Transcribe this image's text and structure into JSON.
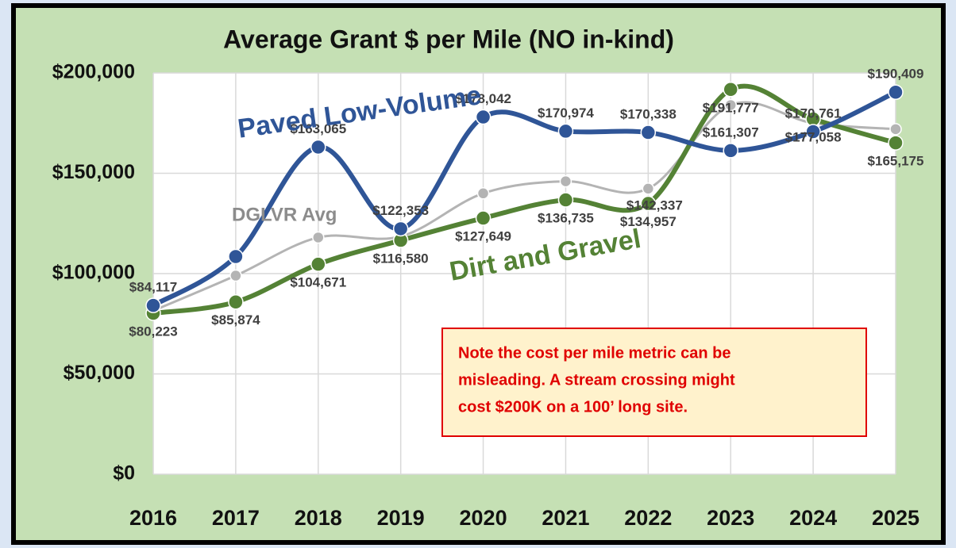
{
  "chart_data": {
    "type": "line",
    "title": "Average Grant $ per Mile (NO in-kind)",
    "categories": [
      "2016",
      "2017",
      "2018",
      "2019",
      "2020",
      "2021",
      "2022",
      "2023",
      "2024",
      "2025"
    ],
    "series": [
      {
        "name": "Paved Low-Volume",
        "color": "#2f5597",
        "values": [
          84117,
          108500,
          163065,
          122353,
          178042,
          170974,
          170338,
          161307,
          170761,
          190409
        ],
        "value_labels": [
          "$84,117",
          null,
          "$163,065",
          "$122,353",
          "$178,042",
          "$170,974",
          "$170,338",
          "$161,307",
          "$170,761",
          "$190,409"
        ]
      },
      {
        "name": "DGLVR Avg",
        "color": "#b4b4b4",
        "values": [
          81500,
          99000,
          118000,
          118500,
          140000,
          146000,
          142337,
          184000,
          175000,
          172000
        ],
        "value_labels": [
          null,
          null,
          null,
          null,
          null,
          null,
          "$142,337",
          null,
          null,
          null
        ]
      },
      {
        "name": "Dirt and Gravel",
        "color": "#548235",
        "values": [
          80223,
          85874,
          104671,
          116580,
          127649,
          136735,
          134957,
          191777,
          177058,
          165175
        ],
        "value_labels": [
          "$80,223",
          "$85,874",
          "$104,671",
          "$116,580",
          "$127,649",
          "$136,735",
          "$134,957",
          "$191,777",
          "$177,058",
          "$165,175"
        ]
      }
    ],
    "ylim": [
      0,
      200000
    ],
    "yticks": [
      {
        "value": 0,
        "label": "$0"
      },
      {
        "value": 50000,
        "label": "$50,000"
      },
      {
        "value": 100000,
        "label": "$100,000"
      },
      {
        "value": 150000,
        "label": "$150,000"
      },
      {
        "value": 200000,
        "label": "$200,000"
      }
    ],
    "grid": true,
    "annotation": [
      "Note the cost per mile metric can be",
      "misleading.  A stream crossing might",
      "cost $200K on a 100’ long site."
    ]
  }
}
